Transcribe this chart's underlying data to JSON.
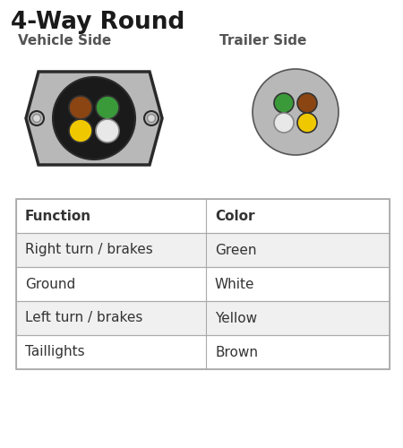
{
  "title": "4-Way Round",
  "vehicle_label": "Vehicle Side",
  "trailer_label": "Trailer Side",
  "bg_color": "#ffffff",
  "title_color": "#1a1a1a",
  "label_color": "#555555",
  "connector_gray": "#b8b8b8",
  "connector_dark": "#2a2a2a",
  "connector_edge": "#555555",
  "black_housing": "#1a1a1a",
  "pin_brown": "#8B4513",
  "pin_green": "#3a9a3a",
  "pin_yellow": "#f0c800",
  "pin_white": "#e8e8e8",
  "pin_white_border": "#888888",
  "table_functions": [
    "Function",
    "Right turn / brakes",
    "Ground",
    "Left turn / brakes",
    "Taillights"
  ],
  "table_colors_col": [
    "Color",
    "Green",
    "White",
    "Yellow",
    "Brown"
  ],
  "table_header_bg": "#ffffff",
  "table_row_bg_odd": "#f0f0f0",
  "table_row_bg_even": "#ffffff",
  "table_border_color": "#aaaaaa",
  "table_text_color": "#333333"
}
